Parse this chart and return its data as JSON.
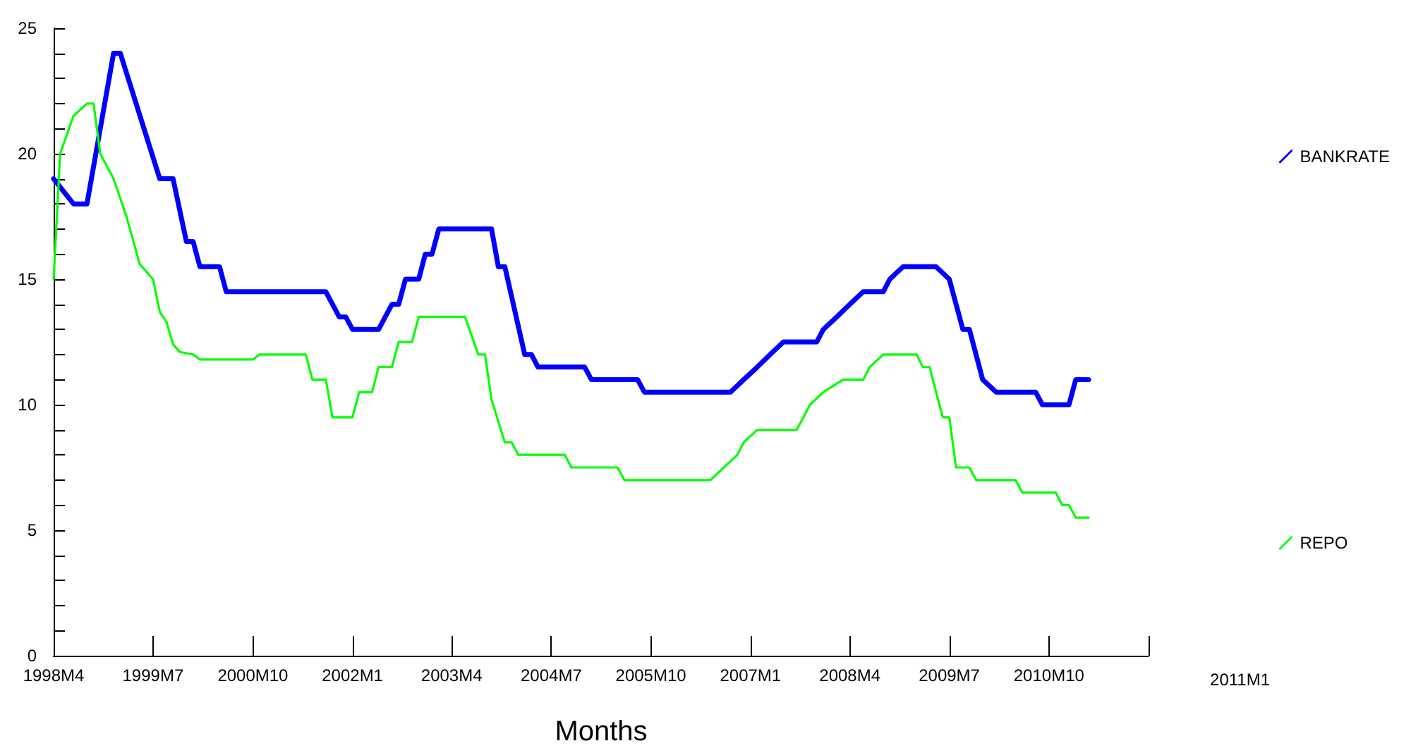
{
  "chart_data": {
    "type": "line",
    "xlabel": "Months",
    "legend": "right",
    "grid": false,
    "marker": "none",
    "line_style": "solid",
    "xlim": [
      "1998-04",
      "2012-01"
    ],
    "xticks": [
      {
        "value": "1998-04",
        "label": "1998M4"
      },
      {
        "value": "1999-07",
        "label": "1999M7"
      },
      {
        "value": "2000-10",
        "label": "2000M10"
      },
      {
        "value": "2002-01",
        "label": "2002M1"
      },
      {
        "value": "2003-04",
        "label": "2003M4"
      },
      {
        "value": "2004-07",
        "label": "2004M7"
      },
      {
        "value": "2005-10",
        "label": "2005M10"
      },
      {
        "value": "2007-01",
        "label": "2007M1"
      },
      {
        "value": "2008-04",
        "label": "2008M4"
      },
      {
        "value": "2009-07",
        "label": "2009M7"
      },
      {
        "value": "2010-10",
        "label": "2010M10"
      },
      {
        "value": "2012-01",
        "label": null
      }
    ],
    "ylim": [
      0,
      25
    ],
    "yticks": [
      0,
      {
        "value": 1,
        "label": null
      },
      {
        "value": 2,
        "label": null
      },
      {
        "value": 3,
        "label": null
      },
      {
        "value": 4,
        "label": null
      },
      5,
      {
        "value": 6,
        "label": null
      },
      {
        "value": 7,
        "label": null
      },
      {
        "value": 8,
        "label": null
      },
      {
        "value": 9,
        "label": null
      },
      10,
      {
        "value": 11,
        "label": null
      },
      {
        "value": 12,
        "label": null
      },
      {
        "value": 13,
        "label": null
      },
      {
        "value": 14,
        "label": null
      },
      15,
      {
        "value": 16,
        "label": null
      },
      {
        "value": 17,
        "label": null
      },
      {
        "value": 18,
        "label": null
      },
      {
        "value": 19,
        "label": null
      },
      20,
      {
        "value": 21,
        "label": null
      },
      {
        "value": 22,
        "label": null
      },
      {
        "value": 23,
        "label": null
      },
      {
        "value": 24,
        "label": null
      },
      25
    ],
    "annotations": [
      "2011M1"
    ],
    "series": [
      {
        "name": "BANKRATE",
        "color": "#0000ff",
        "x": [
          "1998-04",
          "1998-07",
          "1998-09",
          "1999-01",
          "1999-02",
          "1999-08",
          "1999-10",
          "1999-12",
          "2000-01",
          "2000-02",
          "2000-05",
          "2000-06",
          "2001-09",
          "2001-11",
          "2001-12",
          "2002-01",
          "2002-05",
          "2002-07",
          "2002-08",
          "2002-09",
          "2002-11",
          "2002-12",
          "2003-01",
          "2003-02",
          "2003-10",
          "2003-11",
          "2003-12",
          "2004-03",
          "2004-04",
          "2004-05",
          "2004-12",
          "2005-01",
          "2005-08",
          "2005-09",
          "2006-10",
          "2006-12",
          "2007-02",
          "2007-04",
          "2007-06",
          "2007-11",
          "2007-12",
          "2008-02",
          "2008-04",
          "2008-06",
          "2008-09",
          "2008-10",
          "2008-12",
          "2009-05",
          "2009-07",
          "2009-09",
          "2009-10",
          "2009-12",
          "2010-02",
          "2010-08",
          "2010-09",
          "2011-01",
          "2011-02",
          "2011-04"
        ],
        "values": [
          19,
          18,
          18,
          24,
          24,
          19,
          19,
          16.5,
          16.5,
          15.5,
          15.5,
          14.5,
          14.5,
          13.5,
          13.5,
          13,
          13,
          14,
          14,
          15,
          15,
          16,
          16,
          17,
          17,
          15.5,
          15.5,
          12,
          12,
          11.5,
          11.5,
          11,
          11,
          10.5,
          10.5,
          11,
          11.5,
          12,
          12.5,
          12.5,
          13,
          13.5,
          14,
          14.5,
          14.5,
          15,
          15.5,
          15.5,
          15,
          13,
          13,
          11,
          10.5,
          10.5,
          10,
          10,
          11,
          11
        ]
      },
      {
        "name": "REPO",
        "color": "#00ff00",
        "x": [
          "1998-04",
          "1998-05",
          "1998-07",
          "1998-09",
          "1998-10",
          "1998-11",
          "1999-01",
          "1999-03",
          "1999-05",
          "1999-07",
          "1999-08",
          "1999-09",
          "1999-10",
          "1999-11",
          "2000-01",
          "2000-02",
          "2000-10",
          "2000-11",
          "2001-06",
          "2001-07",
          "2001-09",
          "2001-10",
          "2002-01",
          "2002-02",
          "2002-04",
          "2002-05",
          "2002-07",
          "2002-08",
          "2002-10",
          "2002-11",
          "2003-06",
          "2003-08",
          "2003-09",
          "2003-10",
          "2003-12",
          "2004-01",
          "2004-02",
          "2004-09",
          "2004-10",
          "2005-05",
          "2005-06",
          "2006-07",
          "2006-09",
          "2006-11",
          "2006-12",
          "2007-02",
          "2007-08",
          "2007-09",
          "2007-10",
          "2007-12",
          "2008-03",
          "2008-06",
          "2008-07",
          "2008-09",
          "2009-02",
          "2009-03",
          "2009-04",
          "2009-06",
          "2009-07",
          "2009-08",
          "2009-10",
          "2009-11",
          "2010-05",
          "2010-06",
          "2010-11",
          "2010-12",
          "2011-01",
          "2011-02",
          "2011-04"
        ],
        "values": [
          15,
          20,
          21.5,
          22,
          22,
          20,
          19,
          17.5,
          15.6,
          15,
          13.7,
          13.3,
          12.4,
          12.1,
          12,
          11.8,
          11.8,
          12,
          12,
          11,
          11,
          9.5,
          9.5,
          10.5,
          10.5,
          11.5,
          11.5,
          12.5,
          12.5,
          13.5,
          13.5,
          12,
          12,
          10.2,
          8.5,
          8.5,
          8,
          8,
          7.5,
          7.5,
          7,
          7,
          7.5,
          8,
          8.5,
          9,
          9,
          9.5,
          10,
          10.5,
          11,
          11,
          11.5,
          12,
          12,
          11.5,
          11.5,
          9.5,
          9.5,
          7.5,
          7.5,
          7,
          7,
          6.5,
          6.5,
          6,
          6,
          5.5,
          5.5
        ]
      }
    ]
  }
}
